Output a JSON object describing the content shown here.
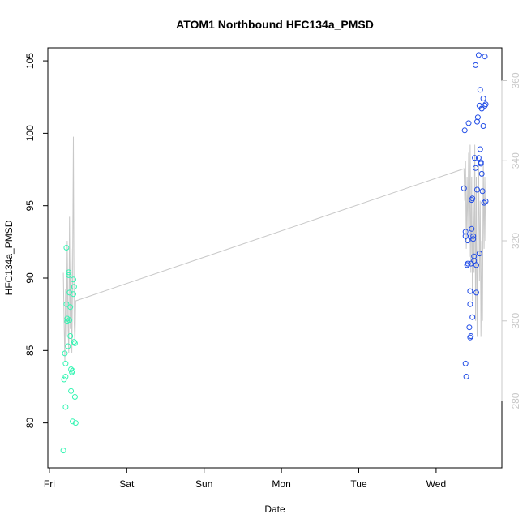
{
  "chart_data": {
    "type": "scatter",
    "title": "ATOM1 Northbound HFC134a_PMSD",
    "xlabel": "Date",
    "ylabel": "HFC134a_PMSD",
    "x_ticks": [
      "Fri",
      "Sat",
      "Sun",
      "Mon",
      "Tue",
      "Wed"
    ],
    "xlim": [
      -0.02,
      5.85
    ],
    "ylim": [
      76.9,
      105.9
    ],
    "y_ticks": [
      80,
      85,
      90,
      95,
      100,
      105
    ],
    "y2lim": [
      263.3,
      368.2
    ],
    "y2_ticks": [
      280,
      300,
      320,
      340,
      360
    ],
    "grid": false,
    "colors": {
      "fri_points": "#33f5b2",
      "wed_points": "#1f4be6",
      "lines": "#c8c8c8",
      "right_axis": "#c8c8c8"
    },
    "series": [
      {
        "points": [
          [
            0.18,
            78.1
          ],
          [
            0.19,
            83.0
          ],
          [
            0.2,
            84.8
          ],
          [
            0.21,
            84.1
          ],
          [
            0.21,
            83.2
          ],
          [
            0.21,
            81.1
          ],
          [
            0.22,
            88.2
          ],
          [
            0.22,
            92.1
          ],
          [
            0.23,
            87.2
          ],
          [
            0.23,
            87.0
          ],
          [
            0.24,
            85.3
          ],
          [
            0.25,
            90.4
          ],
          [
            0.25,
            90.2
          ],
          [
            0.26,
            89.0
          ],
          [
            0.26,
            87.1
          ],
          [
            0.27,
            88.0
          ],
          [
            0.27,
            86.0
          ],
          [
            0.28,
            83.7
          ],
          [
            0.28,
            82.2
          ],
          [
            0.29,
            83.5
          ],
          [
            0.3,
            83.6
          ],
          [
            0.3,
            80.1
          ],
          [
            0.31,
            89.9
          ],
          [
            0.31,
            88.9
          ],
          [
            0.32,
            89.4
          ],
          [
            0.32,
            85.6
          ],
          [
            0.33,
            81.8
          ],
          [
            0.33,
            85.5
          ],
          [
            0.34,
            80.0
          ]
        ]
      },
      {
        "points": [
          [
            5.36,
            96.2
          ],
          [
            5.37,
            100.2
          ],
          [
            5.38,
            93.2
          ],
          [
            5.38,
            92.9
          ],
          [
            5.38,
            84.1
          ],
          [
            5.39,
            83.2
          ],
          [
            5.4,
            90.9
          ],
          [
            5.41,
            91.0
          ],
          [
            5.41,
            92.6
          ],
          [
            5.42,
            100.7
          ],
          [
            5.43,
            86.6
          ],
          [
            5.44,
            89.1
          ],
          [
            5.44,
            88.2
          ],
          [
            5.44,
            85.9
          ],
          [
            5.45,
            86.0
          ],
          [
            5.45,
            92.9
          ],
          [
            5.45,
            91.0
          ],
          [
            5.46,
            95.4
          ],
          [
            5.46,
            93.4
          ],
          [
            5.47,
            95.5
          ],
          [
            5.47,
            87.3
          ],
          [
            5.48,
            92.7
          ],
          [
            5.48,
            92.9
          ],
          [
            5.49,
            91.2
          ],
          [
            5.49,
            91.5
          ],
          [
            5.5,
            98.3
          ],
          [
            5.51,
            97.6
          ],
          [
            5.51,
            104.7
          ],
          [
            5.52,
            90.9
          ],
          [
            5.52,
            89.0
          ],
          [
            5.53,
            100.8
          ],
          [
            5.53,
            96.1
          ],
          [
            5.54,
            101.1
          ],
          [
            5.55,
            105.4
          ],
          [
            5.55,
            98.3
          ],
          [
            5.56,
            101.9
          ],
          [
            5.56,
            91.7
          ],
          [
            5.57,
            103.0
          ],
          [
            5.57,
            98.9
          ],
          [
            5.58,
            98.0
          ],
          [
            5.58,
            97.9
          ],
          [
            5.59,
            101.7
          ],
          [
            5.59,
            97.2
          ],
          [
            5.6,
            96.0
          ],
          [
            5.61,
            102.4
          ],
          [
            5.61,
            100.5
          ],
          [
            5.62,
            95.2
          ],
          [
            5.63,
            105.3
          ],
          [
            5.63,
            101.9
          ],
          [
            5.64,
            102.0
          ],
          [
            5.64,
            95.3
          ]
        ]
      }
    ],
    "line_y2": {
      "x": [
        0.18,
        0.19,
        0.2,
        0.21,
        0.22,
        0.23,
        0.24,
        0.25,
        0.26,
        0.27,
        0.28,
        0.29,
        0.3,
        0.31,
        0.32,
        0.33,
        0.34,
        5.36,
        5.37,
        5.38,
        5.39,
        5.4,
        5.41,
        5.42,
        5.43,
        5.44,
        5.45,
        5.46,
        5.47,
        5.48,
        5.49,
        5.5,
        5.51,
        5.52,
        5.53,
        5.54,
        5.55,
        5.56,
        5.57,
        5.58,
        5.59,
        5.6,
        5.61,
        5.62,
        5.63,
        5.64
      ],
      "y": [
        312,
        300,
        290,
        308,
        296,
        320,
        300,
        292,
        326,
        298,
        318,
        292,
        310,
        346,
        300,
        294,
        305,
        338,
        330,
        340,
        318,
        336,
        322,
        342,
        316,
        344,
        312,
        336,
        305,
        330,
        312,
        344,
        300,
        336,
        296,
        318,
        340,
        310,
        330,
        296,
        320,
        300,
        340,
        318,
        336,
        320
      ]
    }
  }
}
